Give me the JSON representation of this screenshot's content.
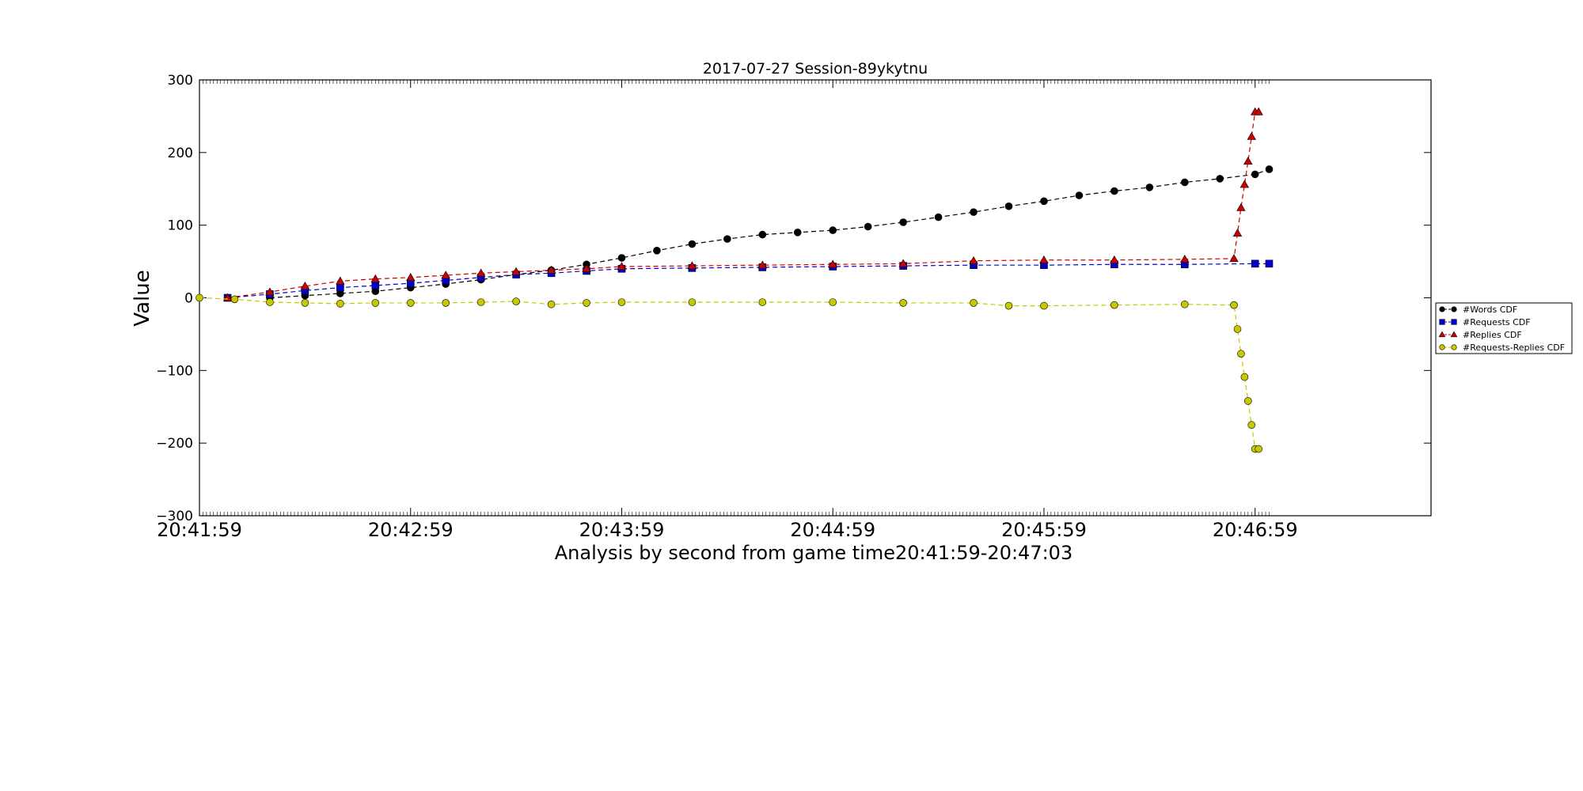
{
  "chart_data": {
    "type": "line",
    "title": "2017-07-27 Session-89ykytnu",
    "xlabel": "Analysis by second from game time20:41:59-20:47:03",
    "ylabel": "Value",
    "xlim": [
      "20:41:59",
      "20:47:49"
    ],
    "ylim": [
      -300,
      300
    ],
    "x_ticks": [
      "20:41:59",
      "20:42:59",
      "20:43:59",
      "20:44:59",
      "20:45:59",
      "20:46:59"
    ],
    "y_ticks": [
      300,
      200,
      100,
      0,
      -100,
      -200,
      -300
    ],
    "y_tick_labels": [
      "300",
      "200",
      "100",
      "0",
      "−100",
      "−200",
      "−300"
    ],
    "grid": false,
    "legend_position": "outside-right",
    "x_range": [
      "20:41:59",
      "20:47:03"
    ],
    "series": [
      {
        "name": "#Words CDF",
        "marker": "circle",
        "color": "#000000",
        "line_color": "#000000",
        "x": [
          "20:42:19",
          "20:42:29",
          "20:42:39",
          "20:42:49",
          "20:42:59",
          "20:43:09",
          "20:43:19",
          "20:43:29",
          "20:43:39",
          "20:43:49",
          "20:43:59",
          "20:44:09",
          "20:44:19",
          "20:44:29",
          "20:44:39",
          "20:44:49",
          "20:44:59",
          "20:45:09",
          "20:45:19",
          "20:45:29",
          "20:45:39",
          "20:45:49",
          "20:45:59",
          "20:46:09",
          "20:46:19",
          "20:46:29",
          "20:46:39",
          "20:46:49",
          "20:46:59",
          "20:47:03"
        ],
        "values": [
          0,
          3,
          6,
          9,
          14,
          19,
          25,
          32,
          38,
          46,
          55,
          65,
          74,
          81,
          87,
          90,
          93,
          98,
          104,
          111,
          118,
          126,
          133,
          141,
          147,
          152,
          159,
          164,
          170,
          177
        ]
      },
      {
        "name": "#Requests CDF",
        "marker": "square",
        "color": "#0000cc",
        "line_color": "#0000cc",
        "x": [
          "20:42:07",
          "20:42:19",
          "20:42:29",
          "20:42:39",
          "20:42:49",
          "20:42:59",
          "20:43:09",
          "20:43:19",
          "20:43:29",
          "20:43:39",
          "20:43:49",
          "20:43:59",
          "20:44:19",
          "20:44:39",
          "20:44:59",
          "20:45:19",
          "20:45:39",
          "20:45:59",
          "20:46:19",
          "20:46:39",
          "20:46:59",
          "20:47:03"
        ],
        "values": [
          0,
          5,
          10,
          14,
          17,
          20,
          24,
          28,
          32,
          34,
          37,
          40,
          41,
          42,
          43,
          44,
          45,
          45,
          46,
          46,
          47,
          47
        ]
      },
      {
        "name": "#Replies CDF",
        "marker": "triangle",
        "color": "#cc0000",
        "line_color": "#cc0000",
        "x": [
          "20:42:07",
          "20:42:19",
          "20:42:29",
          "20:42:39",
          "20:42:49",
          "20:42:59",
          "20:43:09",
          "20:43:19",
          "20:43:29",
          "20:43:39",
          "20:43:49",
          "20:43:59",
          "20:44:19",
          "20:44:39",
          "20:44:59",
          "20:45:19",
          "20:45:39",
          "20:45:59",
          "20:46:19",
          "20:46:39",
          "20:46:53",
          "20:46:54",
          "20:46:55",
          "20:46:56",
          "20:46:57",
          "20:46:58",
          "20:46:59",
          "20:47:00"
        ],
        "values": [
          0,
          8,
          16,
          23,
          26,
          28,
          31,
          34,
          36,
          38,
          40,
          43,
          44,
          45,
          46,
          47,
          51,
          52,
          52,
          53,
          54,
          89,
          124,
          156,
          188,
          222,
          256,
          256
        ]
      },
      {
        "name": "#Requests-Replies CDF",
        "marker": "circle",
        "color": "#c8c800",
        "line_color": "#c8c800",
        "x": [
          "20:41:59",
          "20:42:09",
          "20:42:19",
          "20:42:29",
          "20:42:39",
          "20:42:49",
          "20:42:59",
          "20:43:09",
          "20:43:19",
          "20:43:29",
          "20:43:39",
          "20:43:49",
          "20:43:59",
          "20:44:19",
          "20:44:39",
          "20:44:59",
          "20:45:19",
          "20:45:39",
          "20:45:49",
          "20:45:59",
          "20:46:19",
          "20:46:39",
          "20:46:53",
          "20:46:54",
          "20:46:55",
          "20:46:56",
          "20:46:57",
          "20:46:58",
          "20:46:59",
          "20:47:00"
        ],
        "values": [
          0,
          -2,
          -6,
          -7,
          -8,
          -7,
          -7,
          -7,
          -6,
          -5,
          -9,
          -7,
          -6,
          -6,
          -6,
          -6,
          -7,
          -7,
          -11,
          -11,
          -10,
          -9,
          -10,
          -43,
          -77,
          -109,
          -142,
          -175,
          -208,
          -208
        ]
      }
    ]
  }
}
